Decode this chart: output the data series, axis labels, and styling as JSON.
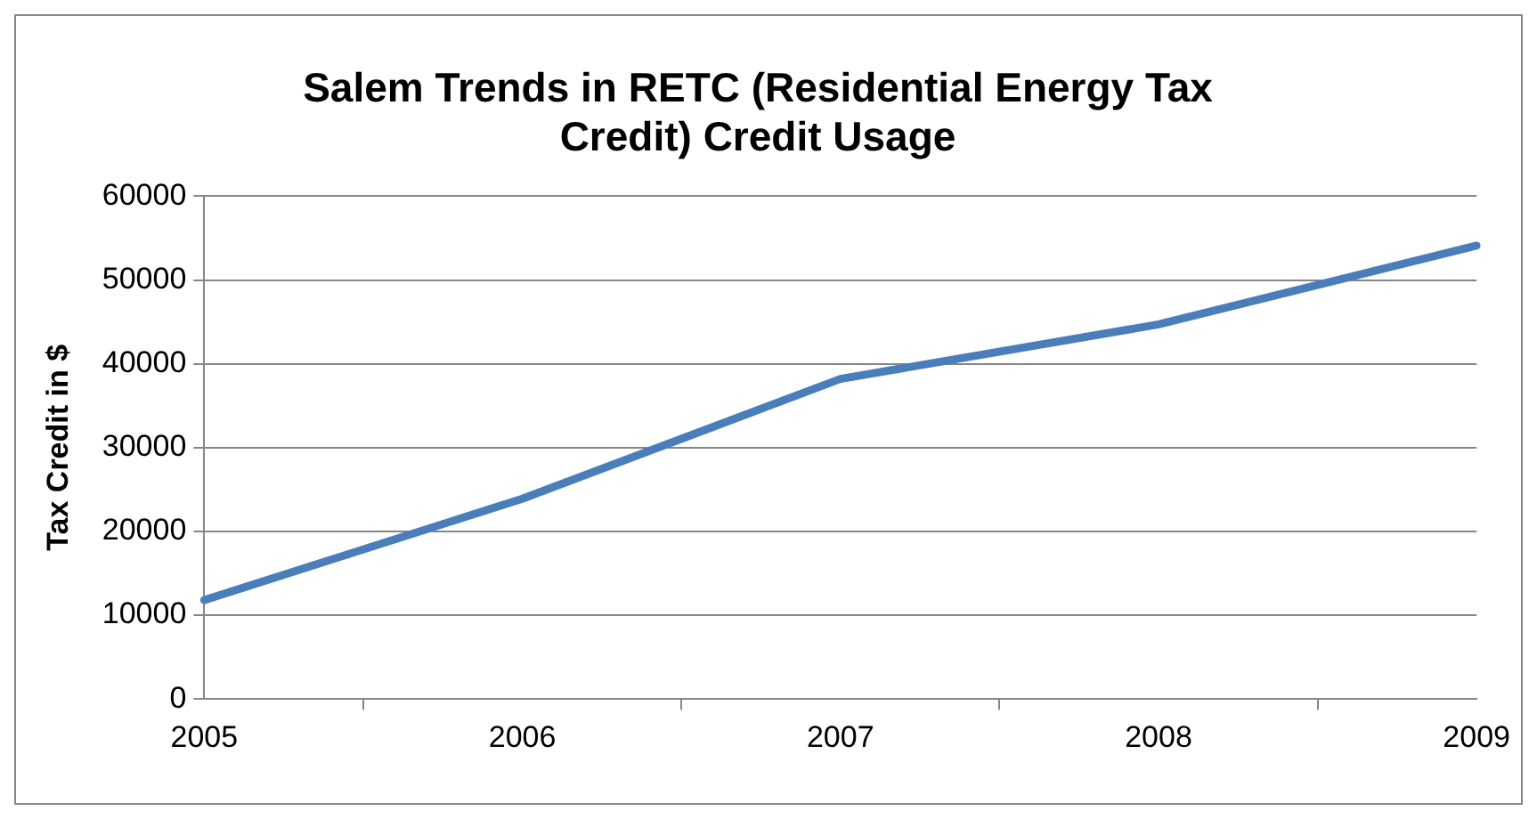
{
  "chart_data": {
    "type": "line",
    "title": "Salem Trends in RETC (Residential Energy Tax Credit) Credit Usage",
    "ylabel": "Tax Credit in $",
    "categories": [
      "2005",
      "2006",
      "2007",
      "2008",
      "2009"
    ],
    "series": [
      {
        "color": "#4a7ebb",
        "values": [
          11800,
          23900,
          38200,
          44700,
          54100
        ]
      }
    ],
    "ylim": [
      0,
      60000
    ],
    "yticks": [
      0,
      10000,
      20000,
      30000,
      40000,
      50000,
      60000
    ],
    "grid": "y",
    "legend": false,
    "marker": "none",
    "line_style": "solid"
  }
}
